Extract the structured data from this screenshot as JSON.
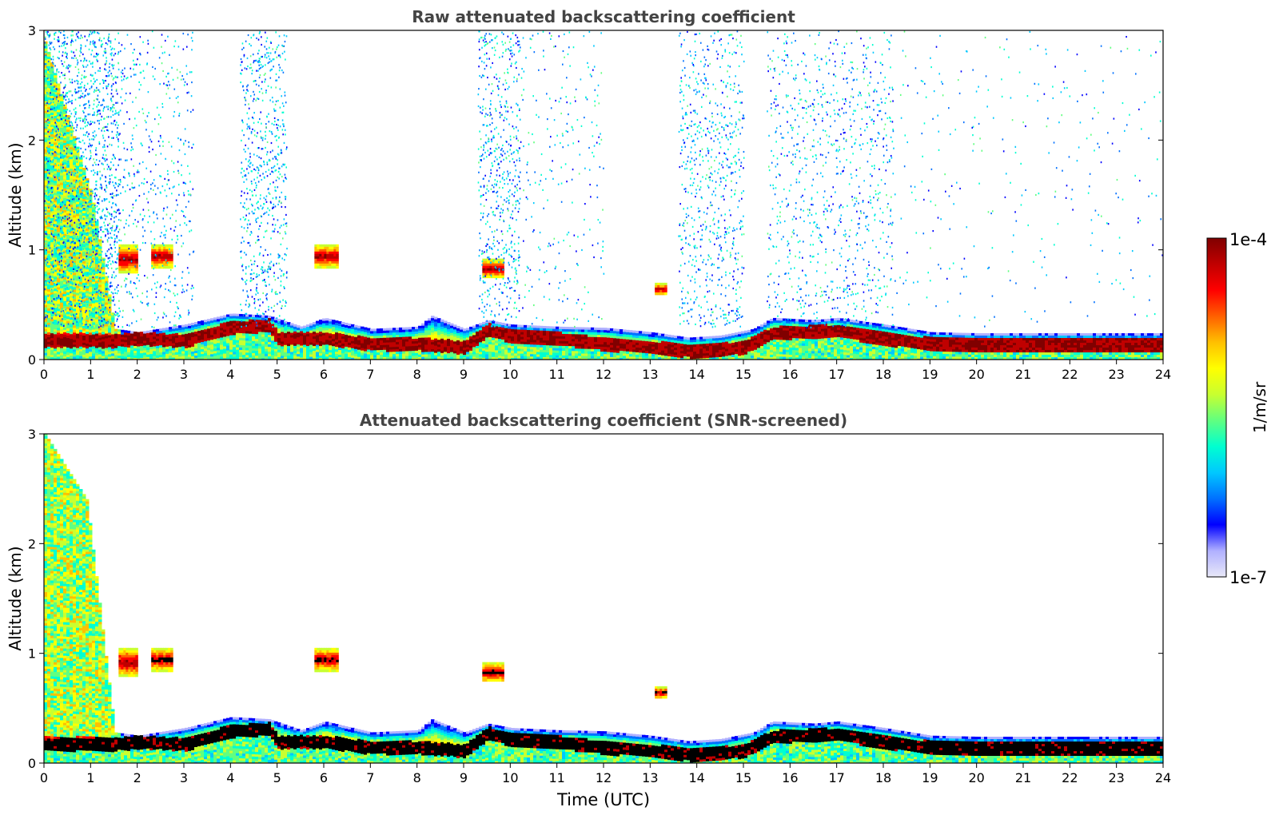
{
  "figure": {
    "xlabel": "Time (UTC)",
    "colorbar": {
      "label": "1/m/sr",
      "max_label": "1e-4",
      "min_label": "1e-7",
      "scale": "log",
      "colormap": [
        "#e8e8f8",
        "#b0b0ff",
        "#0000ff",
        "#0070ff",
        "#00c8ff",
        "#00ffd0",
        "#60ff80",
        "#c8ff30",
        "#ffff00",
        "#ffc000",
        "#ff6000",
        "#ff0000",
        "#c00000",
        "#800000"
      ]
    }
  },
  "chart_data": [
    {
      "type": "heatmap",
      "title": "Raw attenuated backscattering coefficient",
      "xlabel": "",
      "ylabel": "Altitude (km)",
      "xlim": [
        0,
        24
      ],
      "ylim": [
        0,
        3
      ],
      "xticks": [
        0,
        1,
        2,
        3,
        4,
        5,
        6,
        7,
        8,
        9,
        10,
        11,
        12,
        13,
        14,
        15,
        16,
        17,
        18,
        19,
        20,
        21,
        22,
        23,
        24
      ],
      "yticks": [
        0,
        1,
        2,
        3
      ],
      "layer_top_km": [
        [
          0,
          2.9
        ],
        [
          1,
          1.5
        ],
        [
          1.5,
          0.28
        ],
        [
          2,
          0.25
        ],
        [
          3,
          0.32
        ],
        [
          4,
          0.42
        ],
        [
          4.8,
          0.4
        ],
        [
          5.5,
          0.3
        ],
        [
          6,
          0.38
        ],
        [
          7,
          0.28
        ],
        [
          8,
          0.3
        ],
        [
          8.3,
          0.4
        ],
        [
          9,
          0.28
        ],
        [
          9.5,
          0.36
        ],
        [
          10,
          0.32
        ],
        [
          11,
          0.3
        ],
        [
          12,
          0.29
        ],
        [
          13,
          0.25
        ],
        [
          13.8,
          0.2
        ],
        [
          14.5,
          0.22
        ],
        [
          15.2,
          0.28
        ],
        [
          15.6,
          0.38
        ],
        [
          16.5,
          0.36
        ],
        [
          17,
          0.38
        ],
        [
          18,
          0.32
        ],
        [
          19,
          0.25
        ],
        [
          20,
          0.24
        ],
        [
          23.9,
          0.24
        ]
      ],
      "dense_layer_km": [
        [
          1.5,
          0.18
        ],
        [
          2,
          0.2
        ],
        [
          3,
          0.18
        ],
        [
          4,
          0.3
        ],
        [
          4.8,
          0.32
        ],
        [
          5,
          0.2
        ],
        [
          6,
          0.2
        ],
        [
          7,
          0.15
        ],
        [
          8,
          0.15
        ],
        [
          9,
          0.12
        ],
        [
          9.5,
          0.28
        ],
        [
          10,
          0.22
        ],
        [
          11,
          0.2
        ],
        [
          12,
          0.15
        ],
        [
          13,
          0.12
        ],
        [
          14,
          0.08
        ],
        [
          15,
          0.12
        ],
        [
          15.6,
          0.25
        ],
        [
          17,
          0.27
        ],
        [
          18,
          0.2
        ],
        [
          19,
          0.15
        ],
        [
          20,
          0.14
        ],
        [
          23.9,
          0.14
        ]
      ],
      "cloud_patches": [
        {
          "time": [
            1.6,
            2.0
          ],
          "altitude_km": [
            0.8,
            1.05
          ],
          "intensity": "high"
        },
        {
          "time": [
            2.3,
            2.75
          ],
          "altitude_km": [
            0.85,
            1.05
          ],
          "intensity": "very-high"
        },
        {
          "time": [
            5.8,
            6.3
          ],
          "altitude_km": [
            0.85,
            1.05
          ],
          "intensity": "very-high"
        },
        {
          "time": [
            9.4,
            9.85
          ],
          "altitude_km": [
            0.75,
            0.92
          ],
          "intensity": "high"
        },
        {
          "time": [
            13.1,
            13.35
          ],
          "altitude_km": [
            0.6,
            0.7
          ],
          "intensity": "very-high"
        }
      ]
    },
    {
      "type": "heatmap",
      "title": "Attenuated backscattering coefficient (SNR-screened)",
      "xlabel": "Time (UTC)",
      "ylabel": "Altitude (km)",
      "xlim": [
        0,
        24
      ],
      "ylim": [
        0,
        3
      ],
      "xticks": [
        0,
        1,
        2,
        3,
        4,
        5,
        6,
        7,
        8,
        9,
        10,
        11,
        12,
        13,
        14,
        15,
        16,
        17,
        18,
        19,
        20,
        21,
        22,
        23,
        24
      ],
      "yticks": [
        0,
        1,
        2,
        3
      ],
      "layer_top_km": [
        [
          0,
          3.0
        ],
        [
          0.9,
          2.4
        ],
        [
          1.5,
          0.28
        ],
        [
          2,
          0.25
        ],
        [
          3,
          0.32
        ],
        [
          4,
          0.42
        ],
        [
          4.8,
          0.4
        ],
        [
          5.5,
          0.3
        ],
        [
          6,
          0.38
        ],
        [
          7,
          0.28
        ],
        [
          8,
          0.3
        ],
        [
          8.3,
          0.4
        ],
        [
          9,
          0.28
        ],
        [
          9.5,
          0.36
        ],
        [
          10,
          0.32
        ],
        [
          11,
          0.3
        ],
        [
          12,
          0.29
        ],
        [
          13,
          0.25
        ],
        [
          13.8,
          0.2
        ],
        [
          14.5,
          0.22
        ],
        [
          15.2,
          0.28
        ],
        [
          15.6,
          0.38
        ],
        [
          16.5,
          0.36
        ],
        [
          17,
          0.38
        ],
        [
          18,
          0.32
        ],
        [
          19,
          0.25
        ],
        [
          20,
          0.24
        ],
        [
          23.9,
          0.24
        ]
      ],
      "dense_layer_km": [
        [
          1.5,
          0.18
        ],
        [
          2,
          0.2
        ],
        [
          3,
          0.18
        ],
        [
          4,
          0.3
        ],
        [
          4.8,
          0.32
        ],
        [
          5,
          0.2
        ],
        [
          6,
          0.2
        ],
        [
          7,
          0.15
        ],
        [
          8,
          0.15
        ],
        [
          9,
          0.12
        ],
        [
          9.5,
          0.28
        ],
        [
          10,
          0.22
        ],
        [
          11,
          0.2
        ],
        [
          12,
          0.15
        ],
        [
          13,
          0.12
        ],
        [
          14,
          0.08
        ],
        [
          15,
          0.12
        ],
        [
          15.6,
          0.25
        ],
        [
          17,
          0.27
        ],
        [
          18,
          0.2
        ],
        [
          19,
          0.15
        ],
        [
          20,
          0.14
        ],
        [
          23.9,
          0.14
        ]
      ],
      "cloud_patches": [
        {
          "time": [
            1.6,
            2.0
          ],
          "altitude_km": [
            0.8,
            1.05
          ],
          "intensity": "high"
        },
        {
          "time": [
            2.3,
            2.75
          ],
          "altitude_km": [
            0.85,
            1.05
          ],
          "intensity": "saturated"
        },
        {
          "time": [
            5.8,
            6.3
          ],
          "altitude_km": [
            0.85,
            1.05
          ],
          "intensity": "saturated"
        },
        {
          "time": [
            9.4,
            9.85
          ],
          "altitude_km": [
            0.75,
            0.92
          ],
          "intensity": "saturated"
        },
        {
          "time": [
            13.1,
            13.35
          ],
          "altitude_km": [
            0.6,
            0.7
          ],
          "intensity": "saturated"
        }
      ]
    }
  ]
}
